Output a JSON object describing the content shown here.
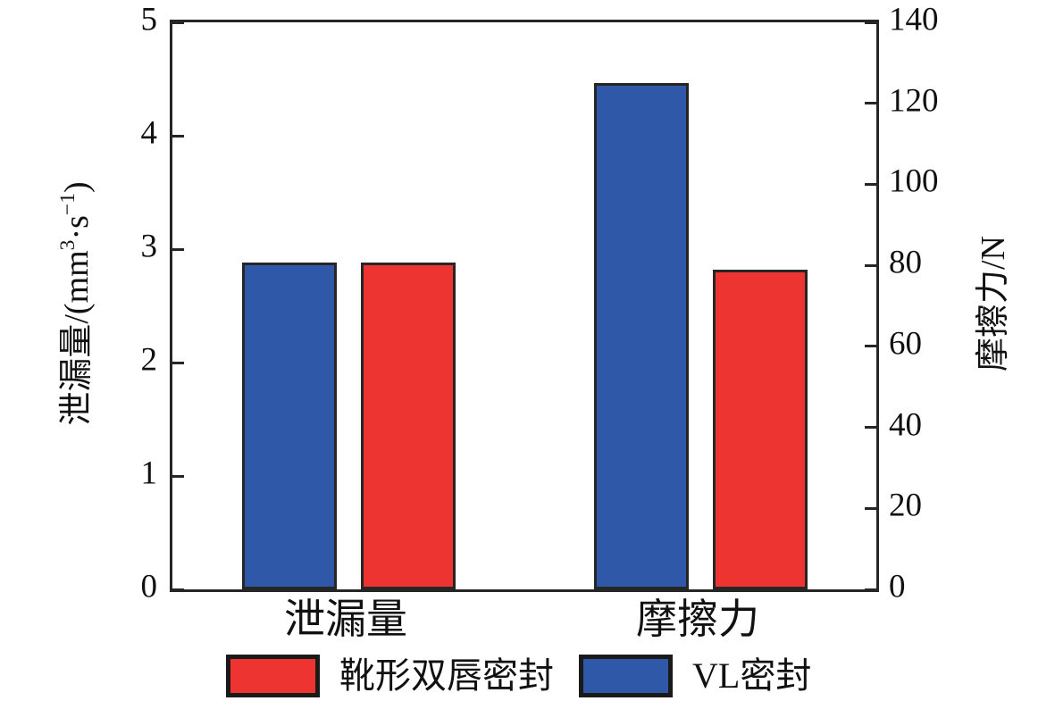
{
  "chart_data": {
    "type": "bar",
    "title": "",
    "categories": [
      "泄漏量",
      "摩擦力"
    ],
    "series": [
      {
        "name": "靴形双唇密封",
        "color": "#ee3431",
        "values": [
          2.88,
          79
        ]
      },
      {
        "name": "VL密封",
        "color": "#2f59a8",
        "values": [
          2.88,
          125
        ]
      }
    ],
    "category_axis": [
      "left",
      "right"
    ],
    "bar_order": [
      "VL密封",
      "靴形双唇密封"
    ],
    "axes": {
      "left": {
        "label": "泄漏量/(mm³·s⁻¹)",
        "min": 0,
        "max": 5,
        "ticks": [
          0,
          1,
          2,
          3,
          4,
          5
        ]
      },
      "right": {
        "label": "摩擦力/N",
        "min": 0,
        "max": 140,
        "ticks": [
          0,
          20,
          40,
          60,
          80,
          100,
          120,
          140
        ]
      }
    },
    "legend": [
      {
        "label": "靴形双唇密封",
        "color": "#ee3431"
      },
      {
        "label": "VL密封",
        "color": "#2f59a8"
      }
    ],
    "grid": false,
    "legend_position": "bottom",
    "colors": {
      "axis": "#262626",
      "text": "#111111",
      "background": "#ffffff"
    }
  },
  "labels": {
    "left_axis": {
      "p1": "泄漏量/(mm",
      "sup1": "3",
      "p2": "·s",
      "sup2": "−1",
      "p3": ")"
    },
    "right_axis": "摩擦力/N"
  }
}
